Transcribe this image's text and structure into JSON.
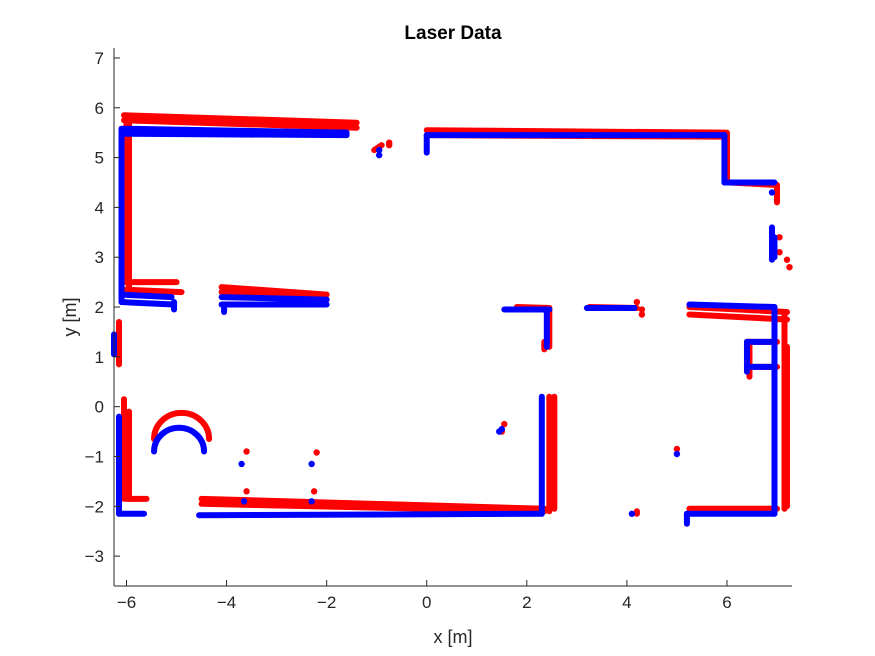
{
  "chart_data": {
    "type": "scatter",
    "title": "Laser Data",
    "xlabel": "x [m]",
    "ylabel": "y [m]",
    "xlim": [
      -6.25,
      7.3
    ],
    "ylim": [
      -3.6,
      7.2
    ],
    "xticks": [
      -6,
      -4,
      -2,
      0,
      2,
      4,
      6
    ],
    "yticks": [
      -3,
      -2,
      -1,
      0,
      1,
      2,
      3,
      4,
      5,
      6,
      7
    ],
    "grid": false,
    "legend": "none",
    "series": [
      {
        "color": "#ff0000",
        "segments": [
          [
            [
              -6.05,
              5.85
            ],
            [
              -1.4,
              5.7
            ]
          ],
          [
            [
              -6.05,
              5.75
            ],
            [
              -1.4,
              5.6
            ]
          ],
          [
            [
              -6.0,
              5.8
            ],
            [
              -6.0,
              2.5
            ]
          ],
          [
            [
              -5.95,
              5.7
            ],
            [
              -5.95,
              2.4
            ]
          ],
          [
            [
              -6.05,
              2.5
            ],
            [
              -5.0,
              2.5
            ]
          ],
          [
            [
              -6.05,
              2.35
            ],
            [
              -4.9,
              2.3
            ]
          ],
          [
            [
              -4.1,
              2.4
            ],
            [
              -2.0,
              2.25
            ]
          ],
          [
            [
              -4.1,
              2.3
            ],
            [
              -2.0,
              2.15
            ]
          ],
          [
            [
              -6.15,
              1.7
            ],
            [
              -6.15,
              0.85
            ]
          ],
          [
            [
              -6.05,
              0.15
            ],
            [
              -6.05,
              -1.85
            ]
          ],
          [
            [
              -5.95,
              -0.1
            ],
            [
              -5.95,
              -1.85
            ]
          ],
          [
            [
              -6.0,
              -1.85
            ],
            [
              -5.6,
              -1.85
            ]
          ],
          [
            [
              -4.5,
              -1.85
            ],
            [
              2.35,
              -2.05
            ]
          ],
          [
            [
              -4.5,
              -1.95
            ],
            [
              2.35,
              -2.1
            ]
          ],
          [
            [
              0.0,
              5.55
            ],
            [
              5.95,
              5.5
            ]
          ],
          [
            [
              0.1,
              5.45
            ],
            [
              5.9,
              5.42
            ]
          ],
          [
            [
              6.0,
              5.5
            ],
            [
              6.0,
              4.5
            ]
          ],
          [
            [
              6.05,
              4.5
            ],
            [
              7.0,
              4.45
            ]
          ],
          [
            [
              7.0,
              4.45
            ],
            [
              7.0,
              4.1
            ]
          ],
          [
            [
              1.8,
              2.0
            ],
            [
              2.45,
              1.98
            ]
          ],
          [
            [
              2.45,
              1.98
            ],
            [
              2.45,
              1.2
            ]
          ],
          [
            [
              2.35,
              1.3
            ],
            [
              2.35,
              1.15
            ]
          ],
          [
            [
              3.25,
              2.0
            ],
            [
              4.2,
              1.98
            ]
          ],
          [
            [
              5.25,
              2.0
            ],
            [
              7.2,
              1.9
            ]
          ],
          [
            [
              5.25,
              1.85
            ],
            [
              7.2,
              1.75
            ]
          ],
          [
            [
              7.15,
              1.9
            ],
            [
              7.15,
              -2.05
            ]
          ],
          [
            [
              7.2,
              1.2
            ],
            [
              7.2,
              -2.0
            ]
          ],
          [
            [
              6.4,
              1.3
            ],
            [
              7.0,
              1.3
            ]
          ],
          [
            [
              6.4,
              0.8
            ],
            [
              7.0,
              0.8
            ]
          ],
          [
            [
              6.45,
              1.3
            ],
            [
              6.45,
              0.6
            ]
          ],
          [
            [
              2.45,
              0.2
            ],
            [
              2.45,
              -2.1
            ]
          ],
          [
            [
              2.55,
              0.2
            ],
            [
              2.55,
              -2.05
            ]
          ],
          [
            [
              5.25,
              -2.05
            ],
            [
              7.0,
              -2.05
            ]
          ],
          [
            [
              -1.05,
              5.15
            ],
            [
              -0.9,
              5.25
            ]
          ],
          [
            [
              4.2,
              -2.1
            ],
            [
              4.2,
              -2.15
            ]
          ]
        ],
        "arcs": [
          {
            "cx": -4.9,
            "cy": -0.65,
            "r": 0.55
          }
        ],
        "points": [
          [
            -3.6,
            -0.9
          ],
          [
            -2.2,
            -0.92
          ],
          [
            -3.6,
            -1.7
          ],
          [
            -2.25,
            -1.7
          ],
          [
            -0.75,
            5.3
          ],
          [
            -0.75,
            5.25
          ],
          [
            7.0,
            4.15
          ],
          [
            7.05,
            3.4
          ],
          [
            7.05,
            3.1
          ],
          [
            7.2,
            2.95
          ],
          [
            7.25,
            2.8
          ],
          [
            1.55,
            -0.35
          ],
          [
            1.5,
            -0.5
          ],
          [
            5.0,
            -0.85
          ],
          [
            4.2,
            2.1
          ],
          [
            4.3,
            1.95
          ],
          [
            4.3,
            1.85
          ]
        ]
      },
      {
        "color": "#0000ff",
        "segments": [
          [
            [
              -6.1,
              5.58
            ],
            [
              -1.6,
              5.5
            ]
          ],
          [
            [
              -6.1,
              5.48
            ],
            [
              -1.6,
              5.45
            ]
          ],
          [
            [
              -6.1,
              5.55
            ],
            [
              -6.1,
              2.1
            ]
          ],
          [
            [
              -6.1,
              2.25
            ],
            [
              -5.1,
              2.2
            ]
          ],
          [
            [
              -6.1,
              2.1
            ],
            [
              -5.05,
              2.05
            ]
          ],
          [
            [
              -5.05,
              2.1
            ],
            [
              -5.05,
              1.95
            ]
          ],
          [
            [
              -4.1,
              2.2
            ],
            [
              -2.0,
              2.15
            ]
          ],
          [
            [
              -4.1,
              2.05
            ],
            [
              -2.0,
              2.05
            ]
          ],
          [
            [
              -4.05,
              2.05
            ],
            [
              -4.05,
              1.9
            ]
          ],
          [
            [
              -6.25,
              1.45
            ],
            [
              -6.25,
              1.05
            ]
          ],
          [
            [
              -6.15,
              -0.2
            ],
            [
              -6.15,
              -2.15
            ]
          ],
          [
            [
              -6.15,
              -2.15
            ],
            [
              -5.65,
              -2.15
            ]
          ],
          [
            [
              -4.55,
              -2.18
            ],
            [
              2.3,
              -2.15
            ]
          ],
          [
            [
              0.0,
              5.45
            ],
            [
              5.95,
              5.45
            ]
          ],
          [
            [
              0.0,
              5.45
            ],
            [
              0.0,
              5.1
            ]
          ],
          [
            [
              5.95,
              5.45
            ],
            [
              5.95,
              4.5
            ]
          ],
          [
            [
              5.95,
              4.5
            ],
            [
              6.95,
              4.5
            ]
          ],
          [
            [
              1.55,
              1.95
            ],
            [
              2.45,
              1.95
            ]
          ],
          [
            [
              2.4,
              1.95
            ],
            [
              2.4,
              1.2
            ]
          ],
          [
            [
              3.2,
              1.98
            ],
            [
              4.15,
              1.98
            ]
          ],
          [
            [
              5.25,
              2.05
            ],
            [
              6.95,
              2.0
            ]
          ],
          [
            [
              6.95,
              2.0
            ],
            [
              6.95,
              -2.15
            ]
          ],
          [
            [
              6.4,
              1.3
            ],
            [
              6.95,
              1.3
            ]
          ],
          [
            [
              6.4,
              0.8
            ],
            [
              6.95,
              0.8
            ]
          ],
          [
            [
              6.4,
              1.3
            ],
            [
              6.4,
              0.7
            ]
          ],
          [
            [
              2.3,
              0.2
            ],
            [
              2.3,
              -2.15
            ]
          ],
          [
            [
              5.2,
              -2.15
            ],
            [
              6.95,
              -2.15
            ]
          ],
          [
            [
              5.2,
              -2.15
            ],
            [
              5.2,
              -2.35
            ]
          ],
          [
            [
              6.9,
              3.6
            ],
            [
              6.9,
              2.95
            ]
          ],
          [
            [
              6.95,
              3.4
            ],
            [
              6.95,
              3.0
            ]
          ]
        ],
        "arcs": [
          {
            "cx": -4.95,
            "cy": -0.9,
            "r": 0.5
          }
        ],
        "points": [
          [
            -3.7,
            -1.15
          ],
          [
            -2.3,
            -1.15
          ],
          [
            -3.65,
            -1.9
          ],
          [
            -2.3,
            -1.9
          ],
          [
            -0.95,
            5.15
          ],
          [
            -0.95,
            5.05
          ],
          [
            1.45,
            -0.5
          ],
          [
            1.5,
            -0.45
          ],
          [
            5.0,
            -0.95
          ],
          [
            4.1,
            -2.15
          ],
          [
            6.9,
            4.3
          ]
        ]
      }
    ]
  }
}
